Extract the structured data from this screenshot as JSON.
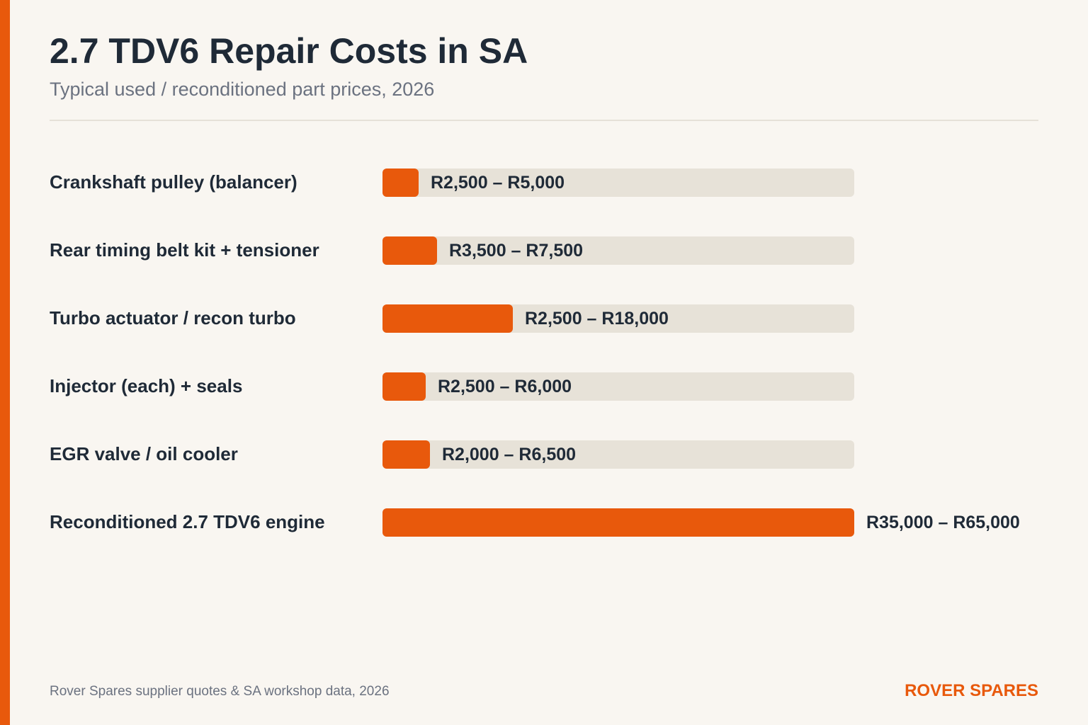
{
  "header": {
    "title": "2.7 TDV6 Repair Costs in SA",
    "subtitle": "Typical used / reconditioned part prices, 2026"
  },
  "footer": {
    "source": "Rover Spares supplier quotes & SA workshop data, 2026",
    "brand": "ROVER SPARES"
  },
  "colors": {
    "accent": "#e8590c",
    "track": "#e7e2d8",
    "text": "#1f2a37",
    "muted": "#6b7280",
    "background": "#f9f6f1"
  },
  "chart_data": {
    "type": "bar",
    "orientation": "horizontal",
    "title": "2.7 TDV6 Repair Costs in SA",
    "subtitle": "Typical used / reconditioned part prices, 2026",
    "xlim": [
      0,
      65000
    ],
    "grid": false,
    "legend": "none",
    "categories": [
      "Crankshaft pulley (balancer)",
      "Rear timing belt kit + tensioner",
      "Turbo actuator / recon turbo",
      "Injector (each) + seals",
      "EGR valve / oil cooler",
      "Reconditioned 2.7 TDV6 engine"
    ],
    "values": [
      5000,
      7500,
      18000,
      6000,
      6500,
      65000
    ],
    "ranges": [
      {
        "low": 2500,
        "high": 5000,
        "label": "R2,500 – R5,000"
      },
      {
        "low": 3500,
        "high": 7500,
        "label": "R3,500 – R7,500"
      },
      {
        "low": 2500,
        "high": 18000,
        "label": "R2,500 – R18,000"
      },
      {
        "low": 2500,
        "high": 6000,
        "label": "R2,500 – R6,000"
      },
      {
        "low": 2000,
        "high": 6500,
        "label": "R2,000 – R6,500"
      },
      {
        "low": 35000,
        "high": 65000,
        "label": "R35,000 – R65,000"
      }
    ]
  }
}
